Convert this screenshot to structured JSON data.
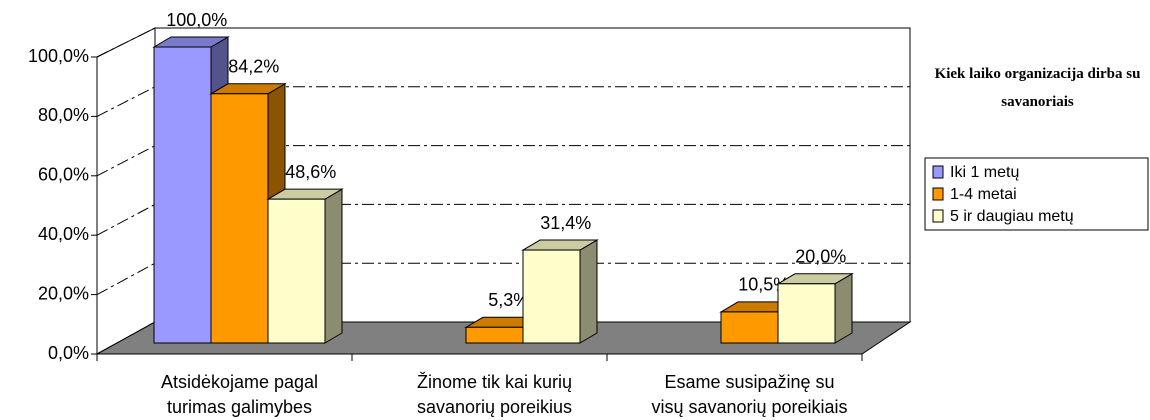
{
  "chart_data": {
    "type": "bar3d",
    "categories": [
      "Atsidėkojame pagal\nturimas galimybes",
      "Žinome tik kai kurių\nsavanorių poreikius",
      "Esame susipažinę su\nvisų savanorių poreikiais"
    ],
    "series": [
      {
        "name": "Iki 1 metų",
        "color": "#9999ff",
        "values": [
          100.0,
          null,
          null
        ],
        "value_labels": [
          "100,0%",
          null,
          null
        ]
      },
      {
        "name": "1-4 metai",
        "color": "#ff9900",
        "values": [
          84.2,
          5.3,
          10.5
        ],
        "value_labels": [
          "84,2%",
          "5,3%",
          "10,5%"
        ]
      },
      {
        "name": "5 ir daugiau metų",
        "color": "#ffffcc",
        "values": [
          48.6,
          31.4,
          20.0
        ],
        "value_labels": [
          "48,6%",
          "31,4%",
          "20,0%"
        ]
      }
    ],
    "ylim": [
      0,
      100
    ],
    "yticks": [
      {
        "value": 0,
        "label": "0,0%"
      },
      {
        "value": 20,
        "label": "20,0%"
      },
      {
        "value": 40,
        "label": "40,0%"
      },
      {
        "value": 60,
        "label": "60,0%"
      },
      {
        "value": 80,
        "label": "80,0%"
      },
      {
        "value": 100,
        "label": "100,0%"
      }
    ],
    "grid": true,
    "legend": {
      "title": "Kiek laiko organizacija dirba su savanoriais",
      "position": "right"
    }
  }
}
